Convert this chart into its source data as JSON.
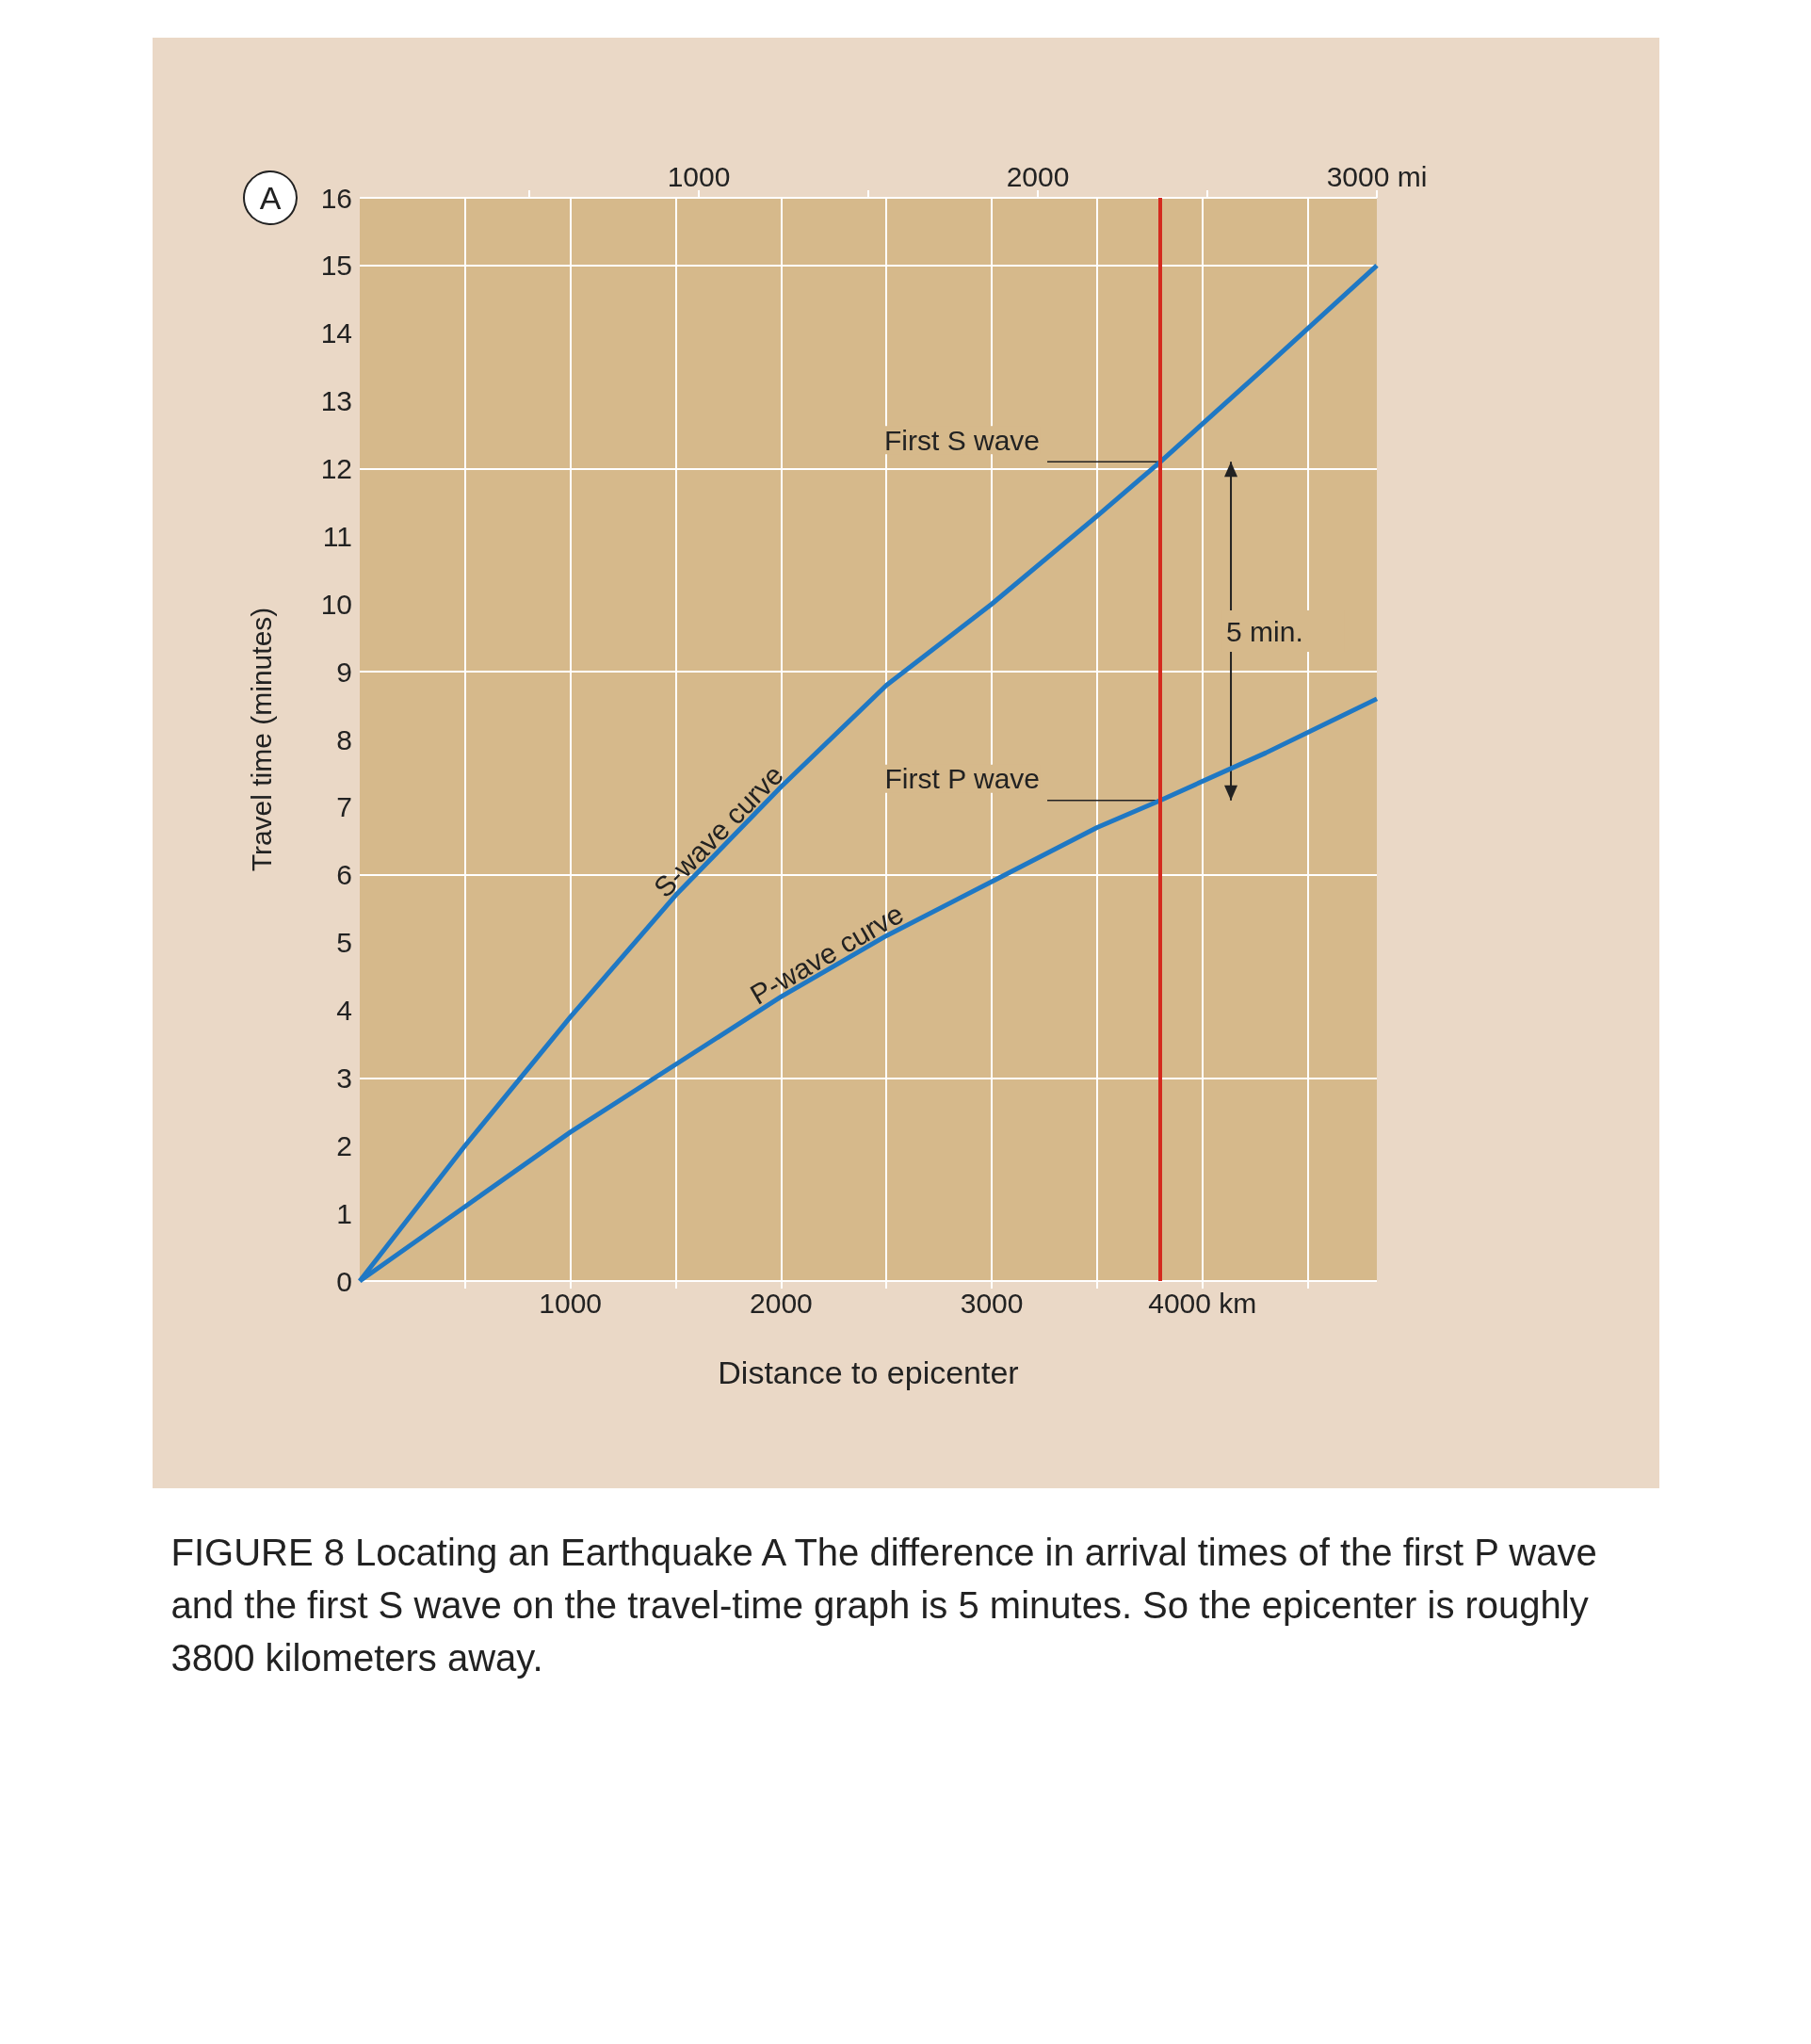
{
  "chart_data": {
    "type": "line",
    "xlabel": "Distance to epicenter",
    "ylabel": "Travel time (minutes)",
    "x": [
      0,
      500,
      1000,
      1500,
      2000,
      2500,
      3000,
      3500,
      3800,
      4300,
      4828
    ],
    "series": [
      {
        "name": "S-wave curve",
        "color": "#1f78c4",
        "values": [
          0,
          2.0,
          3.9,
          5.7,
          7.3,
          8.8,
          10.0,
          11.3,
          12.1,
          13.5,
          15.0
        ]
      },
      {
        "name": "P-wave curve",
        "color": "#1f78c4",
        "values": [
          0,
          1.1,
          2.2,
          3.2,
          4.2,
          5.1,
          5.9,
          6.7,
          7.1,
          7.8,
          8.6
        ]
      }
    ],
    "xlim": [
      0,
      4828
    ],
    "xticks": [
      {
        "value": 500,
        "label": null
      },
      1000,
      {
        "value": 1500,
        "label": null
      },
      2000,
      {
        "value": 2500,
        "label": null
      },
      3000,
      {
        "value": 3500,
        "label": null
      },
      {
        "value": 4000,
        "label": "4000 km"
      },
      {
        "value": 4500,
        "label": null
      }
    ],
    "x2lim": [
      0,
      3000
    ],
    "x2ticks": [
      {
        "value": 500,
        "label": null
      },
      1000,
      {
        "value": 1500,
        "label": null
      },
      2000,
      {
        "value": 2500,
        "label": null
      },
      {
        "value": 3000,
        "label": "3000 mi"
      }
    ],
    "ylim": [
      0,
      16
    ],
    "yticks": [
      0,
      1,
      2,
      3,
      4,
      5,
      6,
      7,
      8,
      9,
      10,
      11,
      12,
      13,
      14,
      15,
      16
    ],
    "ref_lines": [
      {
        "axis": "x",
        "value": 3800,
        "color": "#d42a1e"
      }
    ],
    "annotations": [
      "A",
      {
        "text": "First S wave",
        "x": 3800,
        "y": 12.1
      },
      {
        "text": "First P wave",
        "x": 3800,
        "y": 7.1
      },
      "5 min.",
      "FIGURE 8 Locating an Earthquake A The difference in arrival times of the first P wave and the first S wave on the travel-time graph is 5 minutes. So the epicenter is roughly 3800 kilometers away."
    ],
    "grid": true,
    "marker": "none"
  }
}
